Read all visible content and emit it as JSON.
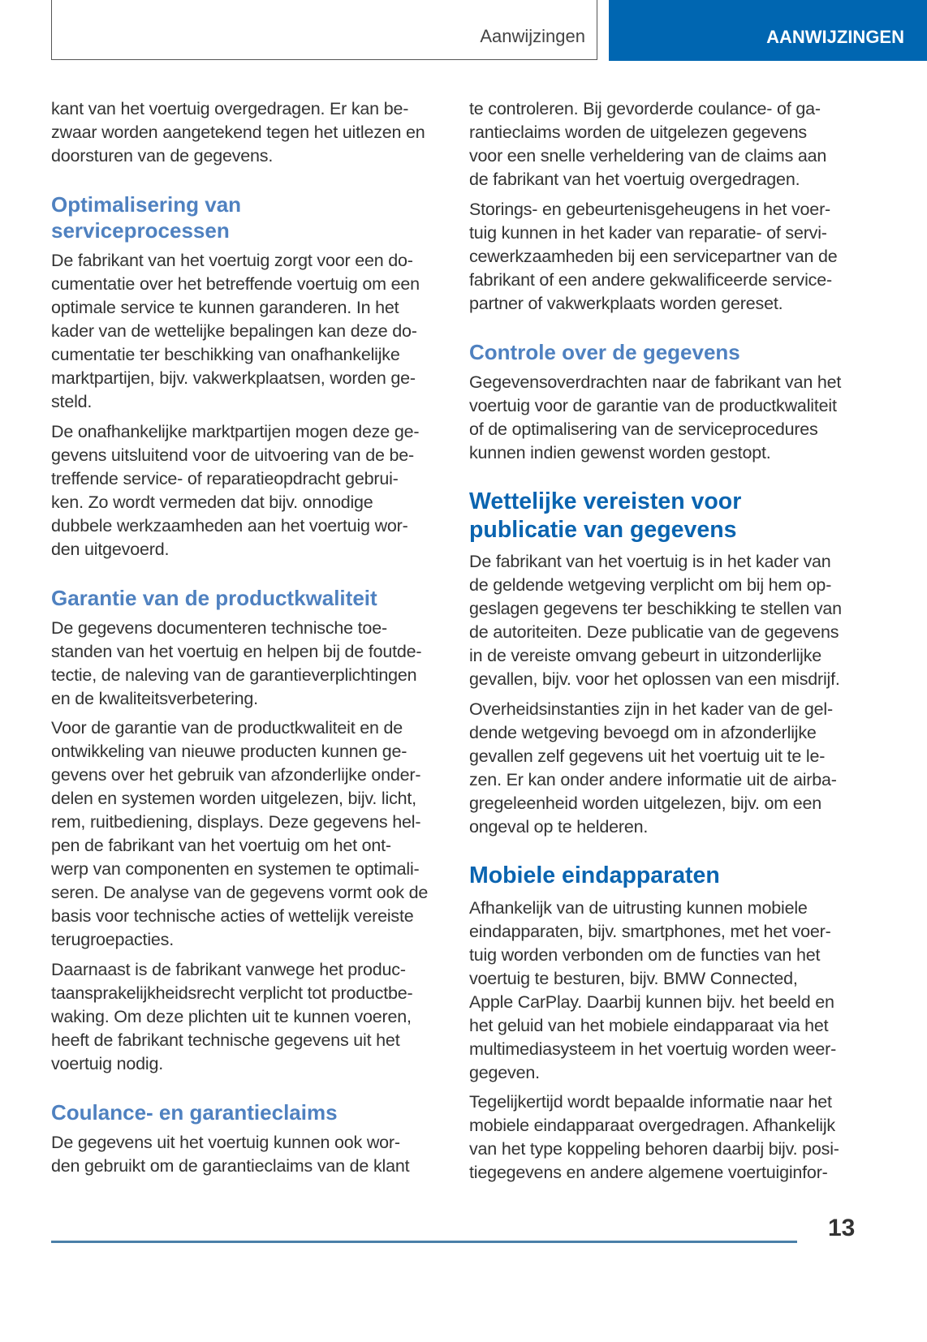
{
  "header": {
    "section_label": "Aanwijzingen",
    "tab_label": "AANWIJZINGEN",
    "tab_color": "#0066b1"
  },
  "left_column": {
    "p1": "kant van het voertuig overgedragen. Er kan be-\nzwaar worden aangetekend tegen het uitlezen en\ndoorsturen van de gegevens.",
    "h_optimalisering": "Optimalisering van\nserviceprocessen",
    "p2": "De fabrikant van het voertuig zorgt voor een do-\ncumentatie over het betreffende voertuig om een\noptimale service te kunnen garanderen. In het\nkader van de wettelijke bepalingen kan deze do-\ncumentatie ter beschikking van onafhankelijke\nmarktpartijen, bijv. vakwerkplaatsen, worden ge-\nsteld.",
    "p3": "De onafhankelijke marktpartijen mogen deze ge-\ngevens uitsluitend voor de uitvoering van de be-\ntreffende service- of reparatieopdracht gebrui-\nken. Zo wordt vermeden dat bijv. onnodige\ndubbele werkzaamheden aan het voertuig wor-\nden uitgevoerd.",
    "h_garantie": "Garantie van de productkwaliteit",
    "p4": "De gegevens documenteren technische toe-\nstanden van het voertuig en helpen bij de foutde-\ntectie, de naleving van de garantieverplichtingen\nen de kwaliteitsverbetering.",
    "p5": "Voor de garantie van de productkwaliteit en de\nontwikkeling van nieuwe producten kunnen ge-\ngevens over het gebruik van afzonderlijke onder-\ndelen en systemen worden uitgelezen, bijv. licht,\nrem, ruitbediening, displays. Deze gegevens hel-\npen de fabrikant van het voertuig om het ont-\nwerp van componenten en systemen te optimali-\nseren. De analyse van de gegevens vormt ook de\nbasis voor technische acties of wettelijk vereiste\nterugroepacties.",
    "p6": "Daarnaast is de fabrikant vanwege het produc-\ntaansprakelijkheidsrecht verplicht tot productbe-\nwaking. Om deze plichten uit te kunnen voeren,\nheeft de fabrikant technische gegevens uit het\nvoertuig nodig.",
    "h_coulance": "Coulance- en garantieclaims",
    "p7": "De gegevens uit het voertuig kunnen ook wor-\nden gebruikt om de garantieclaims van de klant"
  },
  "right_column": {
    "p1": "te controleren. Bij gevorderde coulance- of ga-\nrantieclaims worden de uitgelezen gegevens\nvoor een snelle verheldering van de claims aan\nde fabrikant van het voertuig overgedragen.",
    "p2": "Storings- en gebeurtenisgeheugens in het voer-\ntuig kunnen in het kader van reparatie- of servi-\ncewerkzaamheden bij een servicepartner van de\nfabrikant of een andere gekwalificeerde service-\npartner of vakwerkplaats worden gereset.",
    "h_controle": "Controle over de gegevens",
    "p3": "Gegevensoverdrachten naar de fabrikant van het\nvoertuig voor de garantie van de productkwaliteit\nof de optimalisering van de serviceprocedures\nkunnen indien gewenst worden gestopt.",
    "h_wettelijke": "Wettelijke vereisten voor\npublicatie van gegevens",
    "p4": "De fabrikant van het voertuig is in het kader van\nde geldende wetgeving verplicht om bij hem op-\ngeslagen gegevens ter beschikking te stellen van\nde autoriteiten. Deze publicatie van de gegevens\nin de vereiste omvang gebeurt in uitzonderlijke\ngevallen, bijv. voor het oplossen van een misdrijf.",
    "p5": "Overheidsinstanties zijn in het kader van de gel-\ndende wetgeving bevoegd om in afzonderlijke\ngevallen zelf gegevens uit het voertuig uit te le-\nzen. Er kan onder andere informatie uit de airba-\ngregeleenheid worden uitgelezen, bijv. om een\nongeval op te helderen.",
    "h_mobiele": "Mobiele eindapparaten",
    "p6": "Afhankelijk van de uitrusting kunnen mobiele\neindapparaten, bijv. smartphones, met het voer-\ntuig worden verbonden om de functies van het\nvoertuig te besturen, bijv. BMW Connected,\nApple CarPlay. Daarbij kunnen bijv. het beeld en\nhet geluid van het mobiele eindapparaat via het\nmultimediasysteem in het voertuig worden weer-\ngegeven.",
    "p7": "Tegelijkertijd wordt bepaalde informatie naar het\nmobiele eindapparaat overgedragen. Afhankelijk\nvan het type koppeling behoren daarbij bijv. posi-\ntiegegevens en andere algemene voertuiginfor-"
  },
  "footer": {
    "page_number": "13"
  }
}
